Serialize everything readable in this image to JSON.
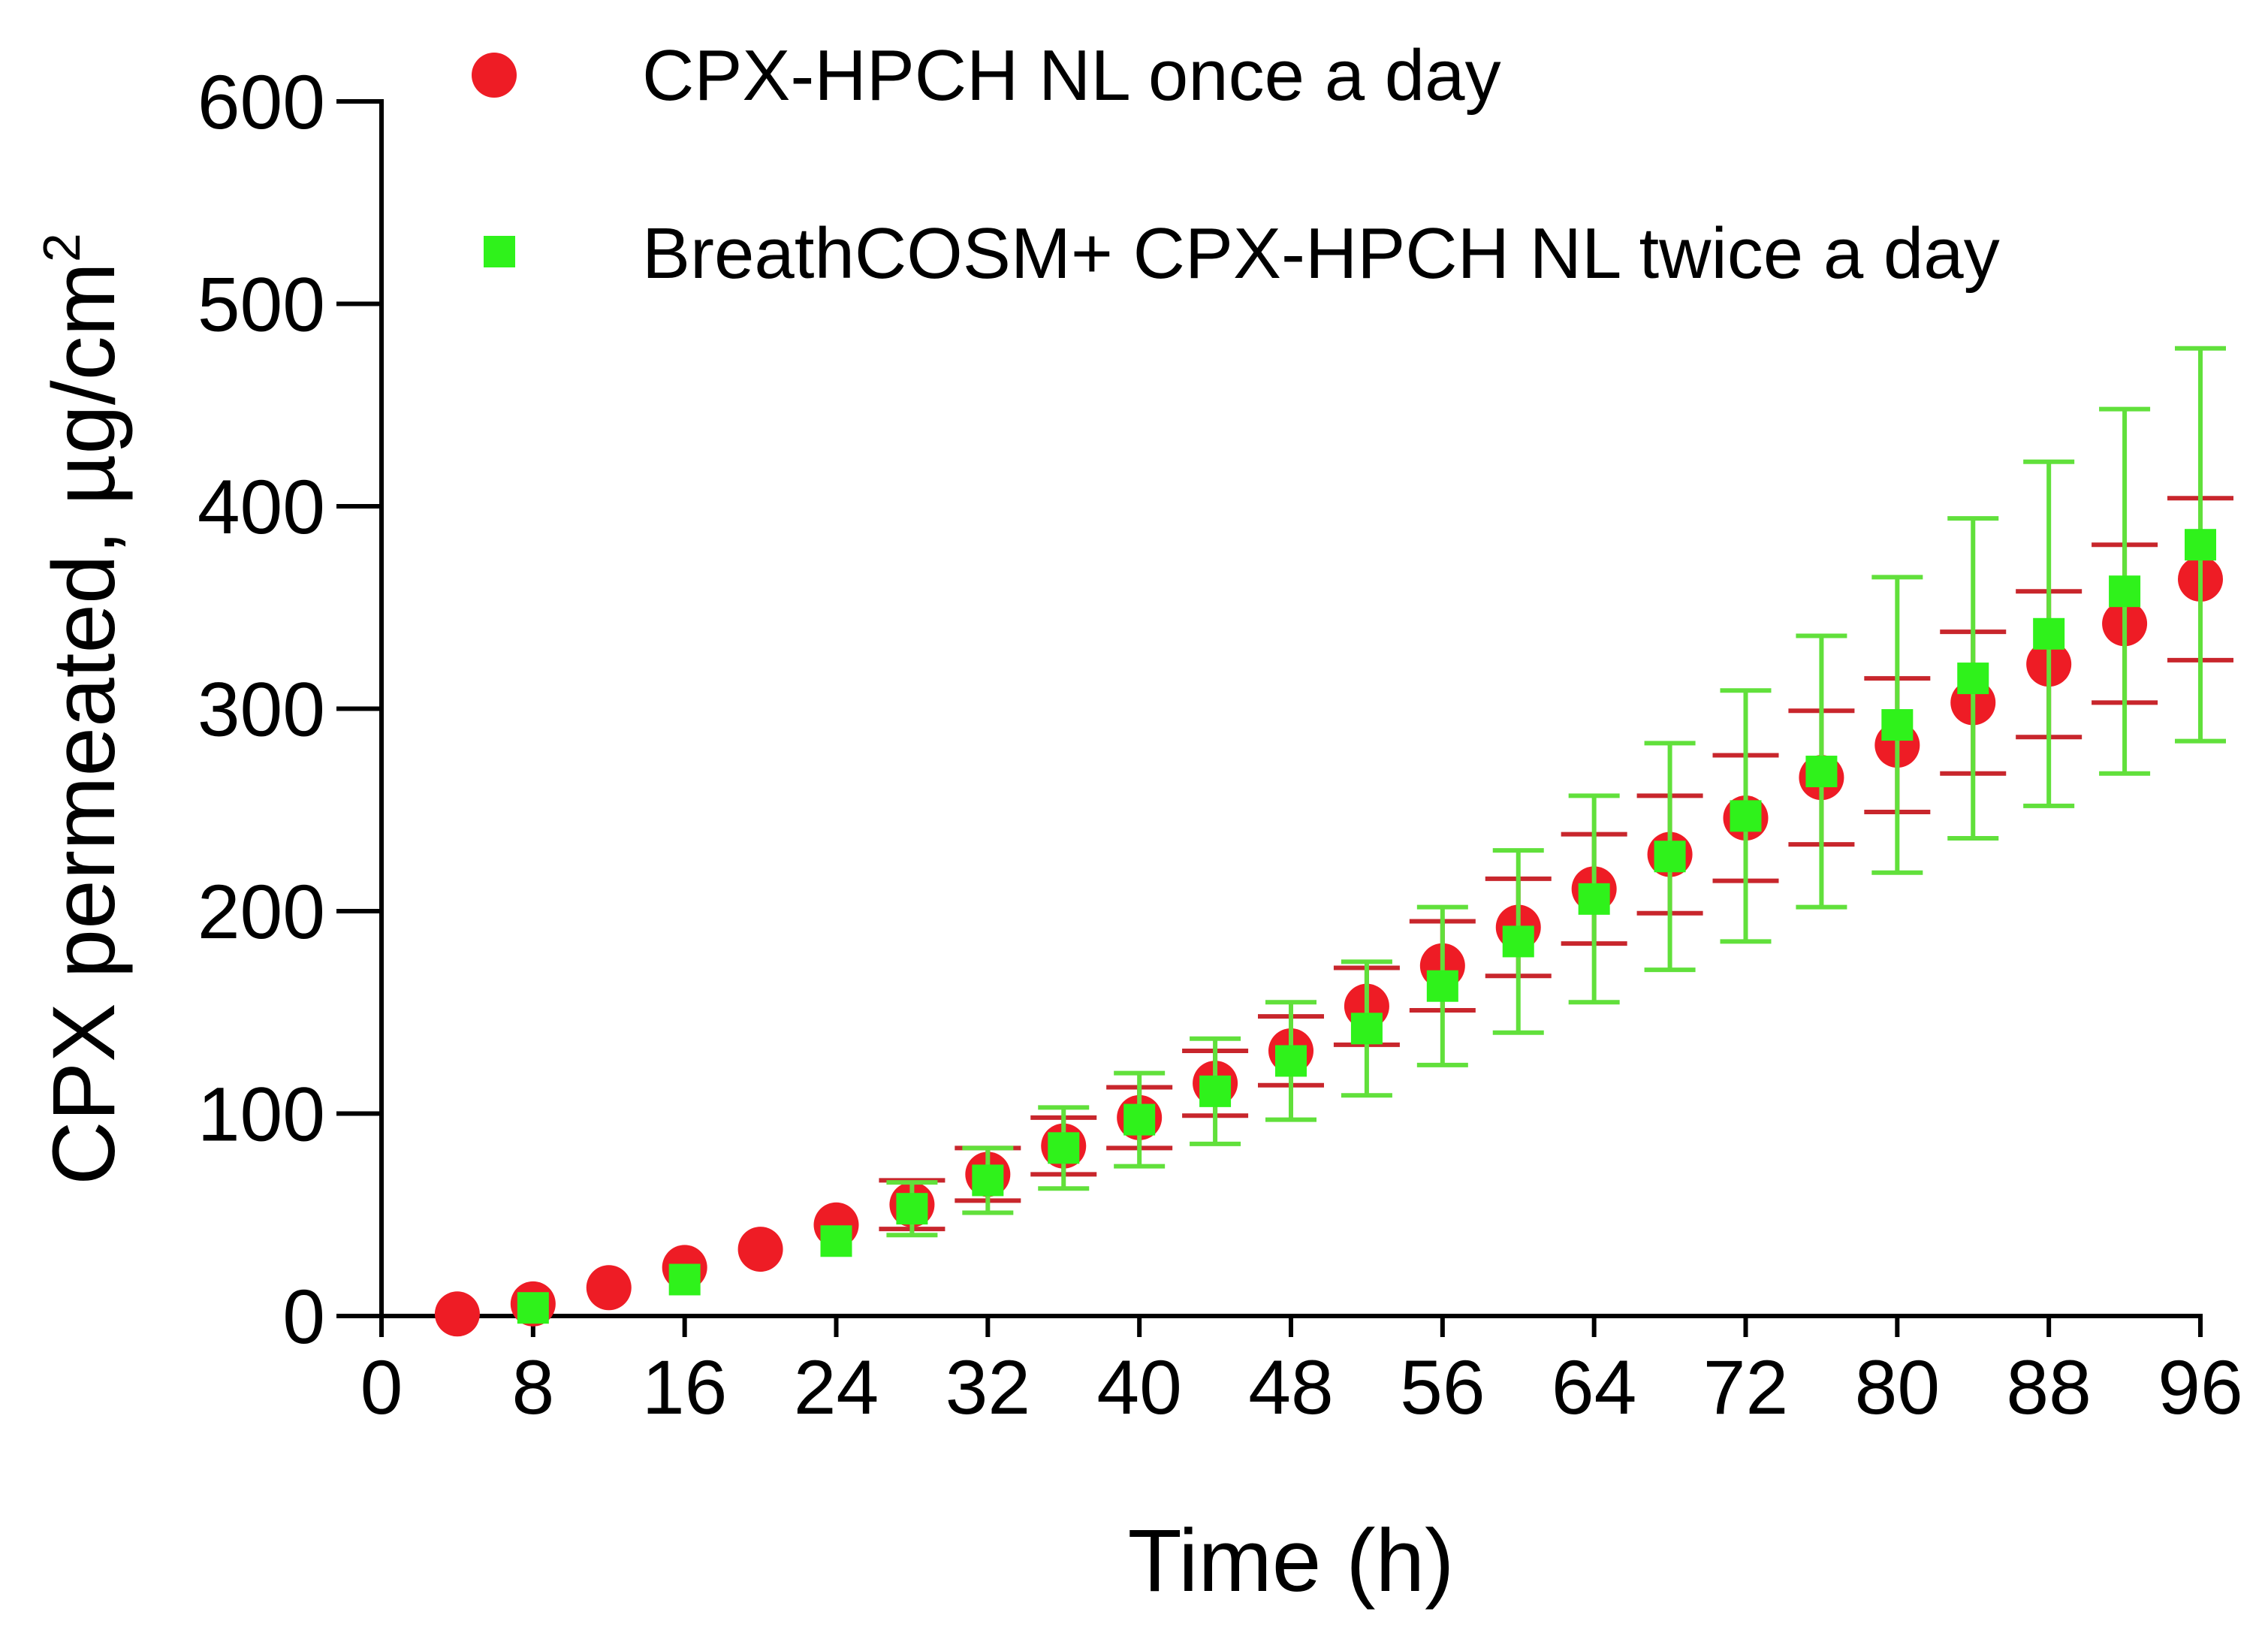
{
  "chart_data": {
    "type": "scatter",
    "title": "",
    "xlabel": "Time (h)",
    "ylabel_prefix": "CPX permeated, µg/cm",
    "ylabel_superscript": "2",
    "xlim": [
      0,
      96
    ],
    "ylim": [
      0,
      600
    ],
    "x_ticks": [
      "0",
      "8",
      "16",
      "24",
      "32",
      "40",
      "48",
      "56",
      "64",
      "72",
      "80",
      "88",
      "96"
    ],
    "y_ticks": [
      "0",
      "100",
      "200",
      "300",
      "400",
      "500",
      "600"
    ],
    "grid": false,
    "legend_position": "top",
    "series": [
      {
        "name": "CPX-HPCH NL once a day",
        "marker": "circle",
        "color": "#ee1c25",
        "errorbar_color": "#c8262c",
        "x": [
          4,
          8,
          12,
          16,
          20,
          24,
          28,
          32,
          36,
          40,
          44,
          48,
          52,
          56,
          60,
          64,
          68,
          72,
          76,
          80,
          84,
          88,
          92,
          96
        ],
        "y": [
          1,
          6,
          14,
          24,
          33,
          45,
          55,
          70,
          84,
          98,
          115,
          131,
          153,
          173,
          192,
          211,
          228,
          246,
          266,
          282,
          303,
          322,
          342,
          364
        ],
        "err": [
          0,
          0,
          0,
          0,
          0,
          0,
          12,
          13,
          14,
          15,
          16,
          17,
          19,
          22,
          24,
          27,
          29,
          31,
          33,
          33,
          35,
          36,
          39,
          40
        ]
      },
      {
        "name": "BreathCOSM+ CPX-HPCH NL twice a day",
        "marker": "square",
        "color": "#2ff21b",
        "errorbar_color": "#61e03b",
        "x": [
          8,
          16,
          24,
          28,
          32,
          36,
          40,
          44,
          48,
          52,
          56,
          60,
          64,
          68,
          72,
          76,
          80,
          84,
          88,
          92,
          96
        ],
        "y": [
          4,
          18,
          37,
          53,
          67,
          83,
          97,
          111,
          126,
          142,
          163,
          185,
          206,
          227,
          247,
          269,
          292,
          315,
          337,
          358,
          381
        ],
        "err": [
          0,
          0,
          0,
          13,
          16,
          20,
          23,
          26,
          29,
          33,
          39,
          45,
          51,
          56,
          62,
          67,
          73,
          79,
          85,
          90,
          97
        ]
      }
    ]
  }
}
